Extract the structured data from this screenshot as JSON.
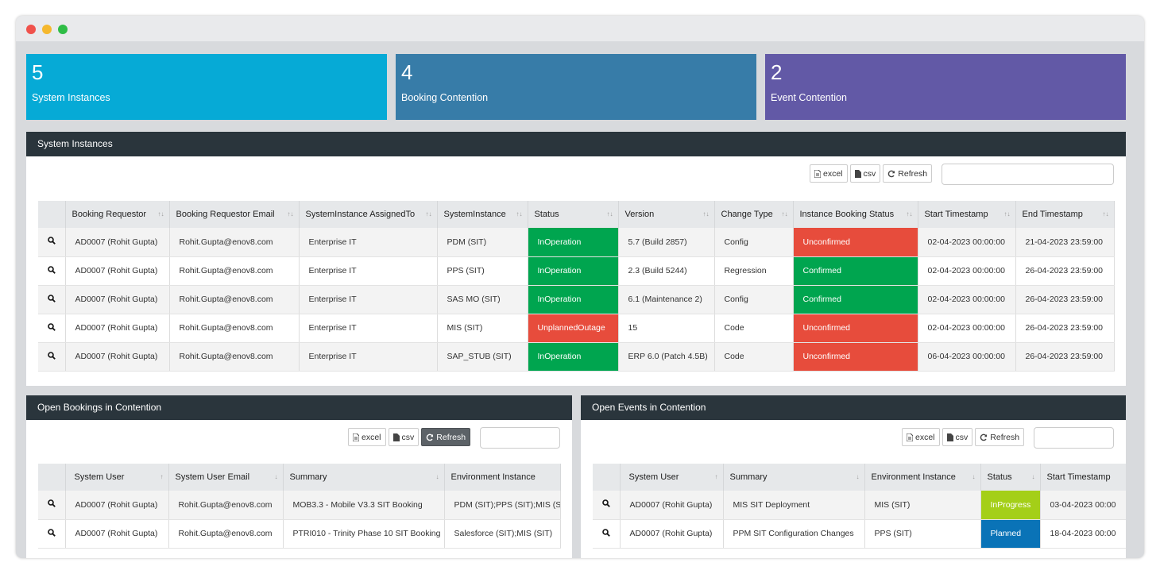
{
  "colors": {
    "card1": "#06aad6",
    "card2": "#377ca8",
    "card3": "#6259a6",
    "in_operation": "#00a54f",
    "unconfirmed": "#e74c3c",
    "confirmed": "#00a54f",
    "in_progress": "#a4cf18",
    "planned": "#0a73b7"
  },
  "cards": [
    {
      "value": "5",
      "label": "System Instances"
    },
    {
      "value": "4",
      "label": "Booking Contention"
    },
    {
      "value": "2",
      "label": "Event Contention"
    }
  ],
  "buttons": {
    "excel": "excel",
    "csv": "csv",
    "refresh": "Refresh"
  },
  "system_instances": {
    "title": "System Instances",
    "columns": [
      "",
      "Booking Requestor",
      "Booking Requestor Email",
      "SystemInstance AssignedTo",
      "SystemInstance",
      "Status",
      "Version",
      "Change Type",
      "Instance Booking Status",
      "Start Timestamp",
      "End Timestamp"
    ],
    "rows": [
      [
        "AD0007 (Rohit Gupta)",
        "Rohit.Gupta@enov8.com",
        "Enterprise IT",
        "PDM (SIT)",
        "InOperation",
        "5.7 (Build 2857)",
        "Config",
        "Unconfirmed",
        "02-04-2023 00:00:00",
        "21-04-2023 23:59:00"
      ],
      [
        "AD0007 (Rohit Gupta)",
        "Rohit.Gupta@enov8.com",
        "Enterprise IT",
        "PPS (SIT)",
        "InOperation",
        "2.3 (Build 5244)",
        "Regression",
        "Confirmed",
        "02-04-2023 00:00:00",
        "26-04-2023 23:59:00"
      ],
      [
        "AD0007 (Rohit Gupta)",
        "Rohit.Gupta@enov8.com",
        "Enterprise IT",
        "SAS MO (SIT)",
        "InOperation",
        "6.1 (Maintenance 2)",
        "Config",
        "Confirmed",
        "02-04-2023 00:00:00",
        "26-04-2023 23:59:00"
      ],
      [
        "AD0007 (Rohit Gupta)",
        "Rohit.Gupta@enov8.com",
        "Enterprise IT",
        "MIS (SIT)",
        "UnplannedOutage",
        "15",
        "Code",
        "Unconfirmed",
        "02-04-2023 00:00:00",
        "26-04-2023 23:59:00"
      ],
      [
        "AD0007 (Rohit Gupta)",
        "Rohit.Gupta@enov8.com",
        "Enterprise IT",
        "SAP_STUB (SIT)",
        "InOperation",
        "ERP 6.0 (Patch 4.5B)",
        "Code",
        "Unconfirmed",
        "06-04-2023 00:00:00",
        "26-04-2023 23:59:00"
      ]
    ]
  },
  "open_bookings": {
    "title": "Open Bookings in Contention",
    "columns": [
      "",
      "System User",
      "System User Email",
      "Summary",
      "Environment Instance"
    ],
    "rows": [
      [
        "AD0007 (Rohit Gupta)",
        "Rohit.Gupta@enov8.com",
        "MOB3.3 - Mobile V3.3 SIT Booking",
        "PDM (SIT);PPS (SIT);MIS (SIT)"
      ],
      [
        "AD0007 (Rohit Gupta)",
        "Rohit.Gupta@enov8.com",
        "PTRI010 - Trinity Phase 10 SIT Booking",
        "Salesforce (SIT);MIS (SIT)"
      ]
    ]
  },
  "open_events": {
    "title": "Open Events in Contention",
    "columns": [
      "",
      "System User",
      "Summary",
      "Environment Instance",
      "Status",
      "Start Timestamp"
    ],
    "rows": [
      [
        "AD0007 (Rohit Gupta)",
        "MIS SIT Deployment",
        "MIS (SIT)",
        "InProgress",
        "03-04-2023 00:00"
      ],
      [
        "AD0007 (Rohit Gupta)",
        "PPM SIT Configuration Changes",
        "PPS (SIT)",
        "Planned",
        "18-04-2023 00:00"
      ]
    ]
  }
}
